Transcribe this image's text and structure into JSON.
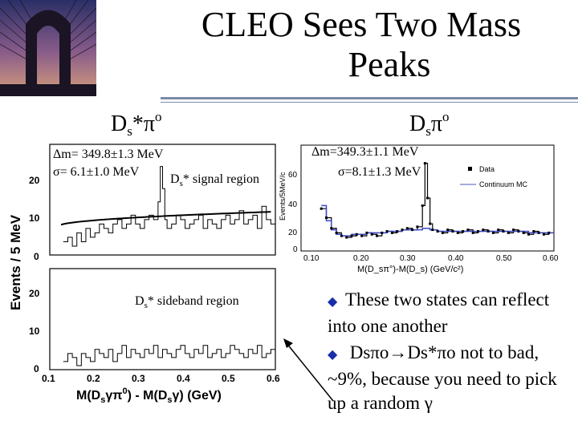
{
  "slide": {
    "title_line1": "CLEO Sees Two Mass",
    "title_line2": "Peaks",
    "left_header": {
      "main": "D",
      "sub": "s",
      "rest": "*π",
      "sup": "o"
    },
    "right_header": {
      "main": "D",
      "sub": "s",
      "rest": "π",
      "sup": "o"
    },
    "photo_icon": "bridge-photo-icon",
    "accent_color": "#7a8aa6",
    "bullet_color": "#1a2da8"
  },
  "left_plot": {
    "annotation_dm": "Δm= 349.8±1.3 MeV",
    "annotation_sigma": "σ= 6.1±1.0 MeV",
    "signal_label": {
      "main": "D",
      "sub": "s",
      "rest": "* signal region"
    },
    "sideband_label": {
      "main": "D",
      "sub": "s",
      "rest": "* sideband region"
    },
    "y_axis_label": "Events / 5 MeV",
    "x_axis_label": {
      "part1": "M(D",
      "sub1": "s",
      "part2": "γπ",
      "sup": "0",
      "part3": ") - M(D",
      "sub2": "s",
      "part4": "γ) (GeV)"
    },
    "y_ticks": [
      "20",
      "10",
      "0",
      "20",
      "10",
      "0"
    ],
    "x_ticks": [
      "0.1",
      "0.2",
      "0.3",
      "0.4",
      "0.5",
      "0.6"
    ]
  },
  "right_plot": {
    "annotation_dm": "Δm=349.3±1.1 MeV",
    "annotation_sigma": "σ=8.1±1.3 MeV",
    "legend_data": "Data",
    "legend_mc": "Continuum MC",
    "y_axis_label": "Events/5MeV/c",
    "x_axis_label": "M(D_sπ°)-M(D_s) (GeV/c²)",
    "y_ticks": [
      "60",
      "40",
      "20",
      "0"
    ],
    "x_ticks": [
      "0.10",
      "0.20",
      "0.30",
      "0.40",
      "0.50",
      "0.60"
    ]
  },
  "bullets": [
    {
      "text": "These two states can reflect into one another"
    },
    {
      "text": " Dsπo→Ds*πo not to bad, ~9%, because you need to pick up a random γ"
    }
  ],
  "chart_data": [
    {
      "type": "bar",
      "title": "",
      "xlabel": "M(Dsγπ0) - M(Dsγ) (GeV)",
      "ylabel": "Events / 5 MeV",
      "xlim": [
        0.1,
        0.6
      ],
      "ylim": [
        0,
        25
      ],
      "x": [
        0.13,
        0.14,
        0.15,
        0.16,
        0.17,
        0.18,
        0.19,
        0.2,
        0.21,
        0.22,
        0.23,
        0.24,
        0.25,
        0.26,
        0.27,
        0.28,
        0.29,
        0.3,
        0.31,
        0.32,
        0.33,
        0.34,
        0.345,
        0.35,
        0.355,
        0.36,
        0.37,
        0.38,
        0.39,
        0.4,
        0.41,
        0.42,
        0.43,
        0.44,
        0.45,
        0.46,
        0.47,
        0.48,
        0.49,
        0.5,
        0.51,
        0.52,
        0.53,
        0.54,
        0.55,
        0.56,
        0.57,
        0.58,
        0.59
      ],
      "series": [
        {
          "values": [
            3,
            4,
            2,
            5,
            3,
            6,
            4,
            5,
            7,
            6,
            5,
            7,
            8,
            6,
            7,
            9,
            7,
            6,
            8,
            9,
            8,
            12,
            20,
            15,
            8,
            6,
            7,
            9,
            8,
            6,
            7,
            8,
            9,
            6,
            8,
            7,
            6,
            8,
            9,
            7,
            8,
            10,
            7,
            8,
            9,
            6,
            11,
            8,
            7
          ]
        }
      ]
    },
    {
      "type": "bar",
      "title": "",
      "xlabel": "M(Dsγπ0) - M(Dsγ) (GeV)",
      "ylabel": "Events / 5 MeV",
      "xlim": [
        0.1,
        0.6
      ],
      "ylim": [
        0,
        25
      ],
      "x": [
        0.13,
        0.14,
        0.15,
        0.16,
        0.17,
        0.18,
        0.19,
        0.2,
        0.21,
        0.22,
        0.23,
        0.24,
        0.25,
        0.26,
        0.27,
        0.28,
        0.29,
        0.3,
        0.31,
        0.32,
        0.33,
        0.34,
        0.35,
        0.36,
        0.37,
        0.38,
        0.39,
        0.4,
        0.41,
        0.42,
        0.43,
        0.44,
        0.45,
        0.46,
        0.47,
        0.48,
        0.49,
        0.5,
        0.51,
        0.52,
        0.53,
        0.54,
        0.55,
        0.56,
        0.57,
        0.58,
        0.59
      ],
      "series": [
        {
          "values": [
            2,
            4,
            3,
            1,
            4,
            3,
            2,
            5,
            4,
            3,
            5,
            2,
            4,
            6,
            3,
            5,
            4,
            3,
            5,
            4,
            6,
            3,
            5,
            4,
            3,
            5,
            6,
            4,
            3,
            5,
            4,
            6,
            3,
            4,
            5,
            3,
            4,
            6,
            5,
            4,
            3,
            5,
            4,
            6,
            3,
            4,
            5
          ]
        }
      ]
    },
    {
      "type": "line",
      "title": "",
      "xlabel": "M(D_sπ°)-M(D_s) (GeV/c²)",
      "ylabel": "Events/5MeV/c",
      "xlim": [
        0.1,
        0.6
      ],
      "ylim": [
        0,
        70
      ],
      "x": [
        0.14,
        0.15,
        0.16,
        0.17,
        0.18,
        0.19,
        0.2,
        0.21,
        0.22,
        0.23,
        0.24,
        0.25,
        0.26,
        0.27,
        0.28,
        0.29,
        0.3,
        0.31,
        0.32,
        0.33,
        0.34,
        0.345,
        0.35,
        0.355,
        0.36,
        0.37,
        0.38,
        0.39,
        0.4,
        0.41,
        0.42,
        0.43,
        0.44,
        0.45,
        0.46,
        0.47,
        0.48,
        0.49,
        0.5,
        0.51,
        0.52,
        0.53,
        0.54,
        0.55,
        0.56,
        0.57,
        0.58,
        0.59
      ],
      "series": [
        {
          "name": "Data",
          "values": [
            28,
            22,
            15,
            12,
            10,
            9,
            10,
            11,
            10,
            12,
            11,
            10,
            12,
            13,
            12,
            13,
            14,
            15,
            14,
            16,
            30,
            58,
            35,
            18,
            14,
            13,
            12,
            14,
            13,
            12,
            13,
            14,
            12,
            13,
            14,
            13,
            12,
            14,
            13,
            12,
            14,
            13,
            12,
            11,
            13,
            12,
            11,
            12
          ]
        },
        {
          "name": "Continuum MC",
          "values": [
            30,
            20,
            14,
            11,
            10,
            10,
            11,
            11,
            11,
            12,
            12,
            12,
            12,
            13,
            13,
            13,
            14,
            14,
            14,
            14,
            15,
            15,
            15,
            14,
            14,
            13,
            13,
            13,
            13,
            13,
            13,
            13,
            13,
            13,
            13,
            13,
            13,
            13,
            13,
            13,
            13,
            13,
            13,
            12,
            12,
            12,
            12,
            12
          ]
        }
      ]
    }
  ]
}
